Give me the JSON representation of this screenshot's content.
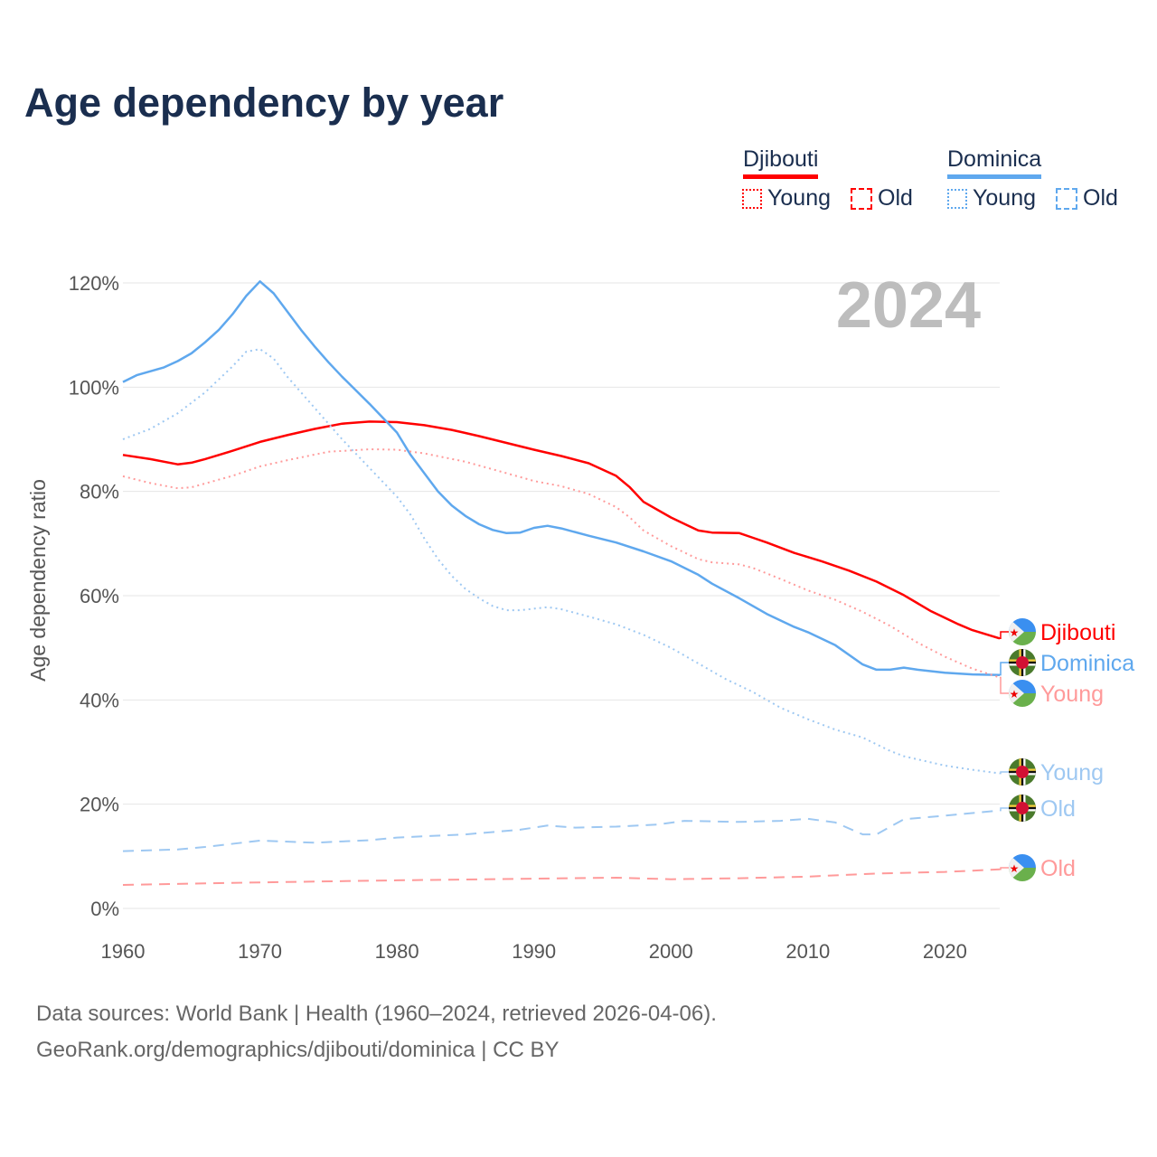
{
  "title": "Age dependency by year",
  "legend": {
    "countries": [
      {
        "name": "Djibouti",
        "color": "#ff0000",
        "light_color": "#ff9a9a",
        "items": [
          "Young",
          "Old"
        ]
      },
      {
        "name": "Dominica",
        "color": "#5fa8ee",
        "light_color": "#9ec8f2",
        "items": [
          "Young",
          "Old"
        ]
      }
    ]
  },
  "year_watermark": "2024",
  "footer": {
    "line1": "Data sources: World Bank | Health (1960–2024, retrieved 2026-04-06).",
    "line2": "GeoRank.org/demographics/djibouti/dominica | CC BY"
  },
  "chart_data": {
    "type": "line",
    "title": "Age dependency by year",
    "xlabel": "",
    "ylabel": "Age dependency ratio",
    "xlim": [
      1960,
      2024
    ],
    "ylim": [
      0,
      120
    ],
    "x_ticks": [
      1960,
      1970,
      1980,
      1990,
      2000,
      2010,
      2020
    ],
    "y_ticks": [
      0,
      20,
      40,
      60,
      80,
      100,
      120
    ],
    "y_tick_labels": [
      "0%",
      "20%",
      "40%",
      "60%",
      "80%",
      "100%",
      "120%"
    ],
    "grid": true,
    "series": [
      {
        "name": "Djibouti",
        "label": "Djibouti",
        "country": "Djibouti",
        "style": "solid",
        "color": "#ff0000",
        "points": [
          [
            1960,
            87
          ],
          [
            1962,
            86.2
          ],
          [
            1964,
            85.2
          ],
          [
            1965,
            85.5
          ],
          [
            1966,
            86.2
          ],
          [
            1968,
            87.8
          ],
          [
            1970,
            89.5
          ],
          [
            1972,
            90.8
          ],
          [
            1974,
            92
          ],
          [
            1976,
            93
          ],
          [
            1978,
            93.4
          ],
          [
            1980,
            93.3
          ],
          [
            1982,
            92.7
          ],
          [
            1984,
            91.8
          ],
          [
            1986,
            90.6
          ],
          [
            1988,
            89.3
          ],
          [
            1990,
            88
          ],
          [
            1992,
            86.8
          ],
          [
            1994,
            85.4
          ],
          [
            1996,
            83
          ],
          [
            1997,
            80.8
          ],
          [
            1998,
            78
          ],
          [
            2000,
            75
          ],
          [
            2002,
            72.5
          ],
          [
            2003,
            72.1
          ],
          [
            2005,
            72
          ],
          [
            2006,
            71.1
          ],
          [
            2007,
            70.2
          ],
          [
            2009,
            68.2
          ],
          [
            2011,
            66.6
          ],
          [
            2013,
            64.8
          ],
          [
            2015,
            62.7
          ],
          [
            2017,
            60.1
          ],
          [
            2019,
            57
          ],
          [
            2021,
            54.5
          ],
          [
            2022,
            53.4
          ],
          [
            2024,
            51.8
          ]
        ]
      },
      {
        "name": "Dominica",
        "label": "Dominica",
        "country": "Dominica",
        "style": "solid",
        "color": "#5fa8ee",
        "points": [
          [
            1960,
            101
          ],
          [
            1961,
            102.3
          ],
          [
            1963,
            103.8
          ],
          [
            1964,
            105
          ],
          [
            1965,
            106.5
          ],
          [
            1966,
            108.6
          ],
          [
            1967,
            111
          ],
          [
            1968,
            114
          ],
          [
            1969,
            117.5
          ],
          [
            1970,
            120.3
          ],
          [
            1971,
            118
          ],
          [
            1972,
            114.5
          ],
          [
            1973,
            111
          ],
          [
            1974,
            107.8
          ],
          [
            1975,
            104.8
          ],
          [
            1976,
            102
          ],
          [
            1978,
            96.8
          ],
          [
            1980,
            91.3
          ],
          [
            1981,
            87
          ],
          [
            1982,
            83.5
          ],
          [
            1983,
            80
          ],
          [
            1984,
            77.3
          ],
          [
            1985,
            75.3
          ],
          [
            1986,
            73.7
          ],
          [
            1987,
            72.6
          ],
          [
            1988,
            72
          ],
          [
            1989,
            72.1
          ],
          [
            1990,
            73
          ],
          [
            1991,
            73.4
          ],
          [
            1992,
            72.9
          ],
          [
            1994,
            71.5
          ],
          [
            1996,
            70.2
          ],
          [
            1998,
            68.5
          ],
          [
            2000,
            66.6
          ],
          [
            2002,
            64
          ],
          [
            2003,
            62.3
          ],
          [
            2005,
            59.5
          ],
          [
            2007,
            56.5
          ],
          [
            2009,
            54
          ],
          [
            2010,
            53
          ],
          [
            2012,
            50.5
          ],
          [
            2014,
            46.8
          ],
          [
            2015,
            45.8
          ],
          [
            2016,
            45.8
          ],
          [
            2017,
            46.2
          ],
          [
            2018,
            45.8
          ],
          [
            2020,
            45.2
          ],
          [
            2022,
            44.9
          ],
          [
            2024,
            44.8
          ]
        ]
      },
      {
        "name": "Djibouti Young",
        "label": "Young",
        "country": "Djibouti",
        "style": "dotted",
        "color": "#ff9a9a",
        "points": [
          [
            1960,
            82.9
          ],
          [
            1962,
            81.6
          ],
          [
            1964,
            80.6
          ],
          [
            1965,
            80.8
          ],
          [
            1968,
            83
          ],
          [
            1970,
            84.8
          ],
          [
            1972,
            86
          ],
          [
            1975,
            87.6
          ],
          [
            1978,
            88.1
          ],
          [
            1980,
            88
          ],
          [
            1982,
            87.3
          ],
          [
            1985,
            85.7
          ],
          [
            1988,
            83.5
          ],
          [
            1990,
            82
          ],
          [
            1992,
            81
          ],
          [
            1994,
            79.5
          ],
          [
            1996,
            77
          ],
          [
            1997,
            75
          ],
          [
            1998,
            72.5
          ],
          [
            2000,
            69.5
          ],
          [
            2002,
            67
          ],
          [
            2003,
            66.4
          ],
          [
            2005,
            66
          ],
          [
            2006,
            65.3
          ],
          [
            2008,
            63.2
          ],
          [
            2010,
            61
          ],
          [
            2012,
            59.2
          ],
          [
            2014,
            56.9
          ],
          [
            2016,
            54.2
          ],
          [
            2018,
            51
          ],
          [
            2020,
            48.3
          ],
          [
            2022,
            46
          ],
          [
            2024,
            44.3
          ]
        ]
      },
      {
        "name": "Dominica Young",
        "label": "Young",
        "country": "Dominica",
        "style": "dotted",
        "color": "#9ec8f2",
        "points": [
          [
            1960,
            90
          ],
          [
            1962,
            92
          ],
          [
            1964,
            95
          ],
          [
            1966,
            99
          ],
          [
            1968,
            104
          ],
          [
            1969,
            106.8
          ],
          [
            1970,
            107.3
          ],
          [
            1971,
            105.5
          ],
          [
            1972,
            102
          ],
          [
            1974,
            96
          ],
          [
            1976,
            90
          ],
          [
            1978,
            84.5
          ],
          [
            1980,
            79
          ],
          [
            1981,
            75.5
          ],
          [
            1982,
            71
          ],
          [
            1983,
            67
          ],
          [
            1984,
            63.8
          ],
          [
            1985,
            61.3
          ],
          [
            1986,
            59.5
          ],
          [
            1987,
            58
          ],
          [
            1988,
            57.2
          ],
          [
            1989,
            57.2
          ],
          [
            1991,
            57.8
          ],
          [
            1992,
            57.4
          ],
          [
            1994,
            56
          ],
          [
            1996,
            54.5
          ],
          [
            1998,
            52.5
          ],
          [
            2000,
            50
          ],
          [
            2002,
            47
          ],
          [
            2004,
            44
          ],
          [
            2006,
            41.5
          ],
          [
            2008,
            38.5
          ],
          [
            2010,
            36.3
          ],
          [
            2012,
            34.3
          ],
          [
            2014,
            32.8
          ],
          [
            2015,
            31.5
          ],
          [
            2016,
            30.2
          ],
          [
            2017,
            29.2
          ],
          [
            2020,
            27.4
          ],
          [
            2022,
            26.6
          ],
          [
            2024,
            25.9
          ]
        ]
      },
      {
        "name": "Dominica Old",
        "label": "Old",
        "country": "Dominica",
        "style": "dashed",
        "color": "#9ec8f2",
        "points": [
          [
            1960,
            11
          ],
          [
            1964,
            11.3
          ],
          [
            1966,
            11.8
          ],
          [
            1970,
            13
          ],
          [
            1974,
            12.6
          ],
          [
            1978,
            13.1
          ],
          [
            1980,
            13.6
          ],
          [
            1985,
            14.2
          ],
          [
            1989,
            15.1
          ],
          [
            1991,
            15.9
          ],
          [
            1993,
            15.5
          ],
          [
            1996,
            15.7
          ],
          [
            1999,
            16.1
          ],
          [
            2001,
            16.8
          ],
          [
            2005,
            16.6
          ],
          [
            2008,
            16.8
          ],
          [
            2010,
            17.2
          ],
          [
            2012,
            16.5
          ],
          [
            2014,
            14.2
          ],
          [
            2015,
            14.2
          ],
          [
            2017,
            17.1
          ],
          [
            2020,
            17.8
          ],
          [
            2022,
            18.3
          ],
          [
            2024,
            18.8
          ]
        ]
      },
      {
        "name": "Djibouti Old",
        "label": "Old",
        "country": "Djibouti",
        "style": "dashed",
        "color": "#ff9a9a",
        "points": [
          [
            1960,
            4.5
          ],
          [
            1970,
            5
          ],
          [
            1980,
            5.4
          ],
          [
            1990,
            5.7
          ],
          [
            1996,
            5.9
          ],
          [
            2000,
            5.6
          ],
          [
            2005,
            5.8
          ],
          [
            2010,
            6.1
          ],
          [
            2015,
            6.7
          ],
          [
            2020,
            7
          ],
          [
            2024,
            7.5
          ]
        ]
      }
    ]
  }
}
